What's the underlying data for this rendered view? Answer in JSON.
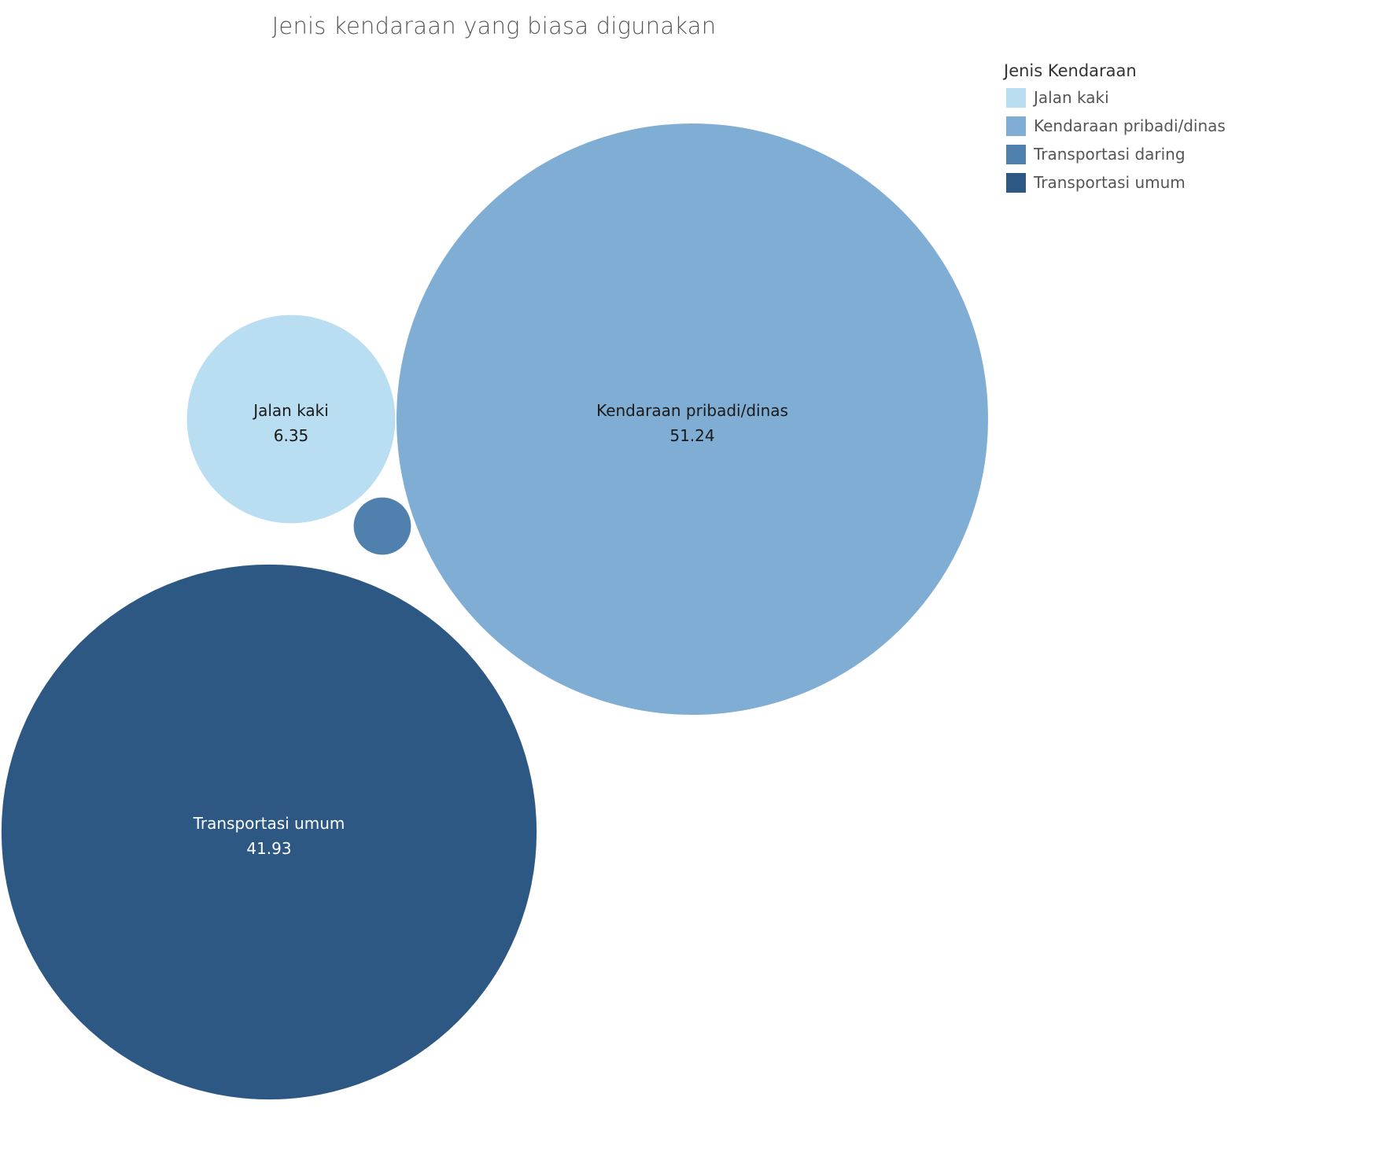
{
  "chart_data": {
    "type": "bubble",
    "title": "Jenis kendaraan yang biasa digunakan",
    "legend": {
      "title": "Jenis Kendaraan",
      "placement": "top-right"
    },
    "series": [
      {
        "name": "Jalan kaki",
        "value": 6.35,
        "label": "6.35",
        "color": "#b9ddf1",
        "text_color": "#1a1a1a"
      },
      {
        "name": "Kendaraan pribadi/dinas",
        "value": 51.24,
        "label": "51.24",
        "color": "#7fadd4",
        "text_color": "#1a1a1a"
      },
      {
        "name": "Transportasi daring",
        "value": 0.48,
        "label": "",
        "color": "#5080ae",
        "text_color": "#ffffff"
      },
      {
        "name": "Transportasi umum",
        "value": 41.93,
        "label": "41.93",
        "color": "#2c5883",
        "text_color": "#ffffff"
      }
    ]
  }
}
